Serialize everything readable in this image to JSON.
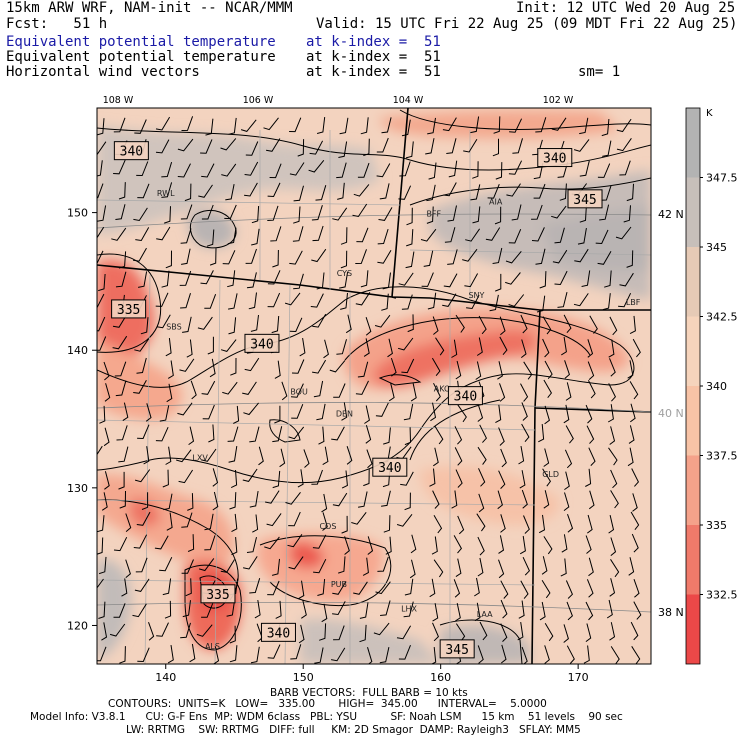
{
  "header": {
    "model_line": "15km ARW WRF, NAM-init -- NCAR/MMM",
    "init": "Init: 12 UTC Wed 20 Aug 25",
    "fcst": "Fcst:   51 h",
    "valid": "Valid: 15 UTC Fri 22 Aug 25 (09 MDT Fri 22 Aug 25)",
    "fields": [
      {
        "name": "Equivalent potential temperature",
        "level": "at k-index =  51",
        "color": "#1a1aa6"
      },
      {
        "name": "Equivalent potential temperature",
        "level": "at k-index =  51",
        "color": "#000000"
      },
      {
        "name": "Horizontal wind vectors",
        "level": "at k-index =  51",
        "color": "#000000"
      }
    ],
    "smoothing": "sm= 1"
  },
  "chart_data": {
    "type": "heatmap",
    "variable": "Equivalent potential temperature",
    "colorbar": {
      "unit": "K",
      "ticks": [
        "347.5",
        "345",
        "342.5",
        "340",
        "337.5",
        "335",
        "332.5"
      ],
      "colors": [
        "#b3b3b3",
        "#c7bfba",
        "#e6cab6",
        "#f6d4bc",
        "#f8c3a6",
        "#f5a28a",
        "#f07a6a",
        "#ec4848"
      ]
    },
    "grid_x_ticks": [
      "140",
      "150",
      "160",
      "170"
    ],
    "grid_y_ticks": [
      "120",
      "130",
      "140",
      "150"
    ],
    "lon_labels": [
      "108 W",
      "106 W",
      "104 W",
      "102 W"
    ],
    "lat_labels": [
      {
        "label": "42 N",
        "color": "#000000"
      },
      {
        "label": "40 N",
        "color": "#a0a0a0"
      },
      {
        "label": "38 N",
        "color": "#000000"
      }
    ],
    "contour_labels": [
      {
        "text": "340",
        "gx": 137.5,
        "gy": 154.5
      },
      {
        "text": "340",
        "gx": 168.3,
        "gy": 154.0
      },
      {
        "text": "345",
        "gx": 170.5,
        "gy": 151.0
      },
      {
        "text": "335",
        "gx": 137.3,
        "gy": 143.0
      },
      {
        "text": "340",
        "gx": 147.0,
        "gy": 140.5
      },
      {
        "text": "340",
        "gx": 161.8,
        "gy": 136.7
      },
      {
        "text": "340",
        "gx": 156.3,
        "gy": 131.5
      },
      {
        "text": "335",
        "gx": 143.8,
        "gy": 122.3
      },
      {
        "text": "340",
        "gx": 148.2,
        "gy": 119.5
      },
      {
        "text": "345",
        "gx": 161.2,
        "gy": 118.3
      }
    ],
    "stations": [
      {
        "id": "RWL",
        "gx": 140.0,
        "gy": 151.2
      },
      {
        "id": "BFF",
        "gx": 159.5,
        "gy": 149.7
      },
      {
        "id": "AIA",
        "gx": 164.0,
        "gy": 150.6
      },
      {
        "id": "CYS",
        "gx": 153.0,
        "gy": 145.4
      },
      {
        "id": "SNY",
        "gx": 162.6,
        "gy": 143.8
      },
      {
        "id": "LBF",
        "gx": 174.0,
        "gy": 143.3
      },
      {
        "id": "SBS",
        "gx": 140.6,
        "gy": 141.5
      },
      {
        "id": "BOU",
        "gx": 149.7,
        "gy": 136.8
      },
      {
        "id": "DEN",
        "gx": 153.0,
        "gy": 135.2
      },
      {
        "id": "AKO",
        "gx": 160.1,
        "gy": 137.0
      },
      {
        "id": "LXV",
        "gx": 142.5,
        "gy": 132.0
      },
      {
        "id": "GLD",
        "gx": 168.0,
        "gy": 130.8
      },
      {
        "id": "COS",
        "gx": 151.8,
        "gy": 127.0
      },
      {
        "id": "PUB",
        "gx": 152.6,
        "gy": 122.8
      },
      {
        "id": "LHX",
        "gx": 157.7,
        "gy": 121.0
      },
      {
        "id": "LAA",
        "gx": 163.2,
        "gy": 120.6
      },
      {
        "id": "ALS",
        "gx": 143.4,
        "gy": 118.3
      }
    ],
    "barb_note": "FULL BARB = 10 kts"
  },
  "footer": {
    "barb": "BARB VECTORS:  FULL BARB = 10 kts",
    "contours": "CONTOURS:  UNITS=K   LOW=   335.00       HIGH=  345.00      INTERVAL=    5.0000",
    "model_info": "Model Info: V3.8.1      CU: G-F Ens  MP: WDM 6class   PBL: YSU          SF: Noah LSM      15 km    51 levels    90 sec",
    "model_info2": "LW: RRTMG    SW: RRTMG   DIFF: full     KM: 2D Smagor  DAMP: Rayleigh3   SFLAY: MM5"
  }
}
